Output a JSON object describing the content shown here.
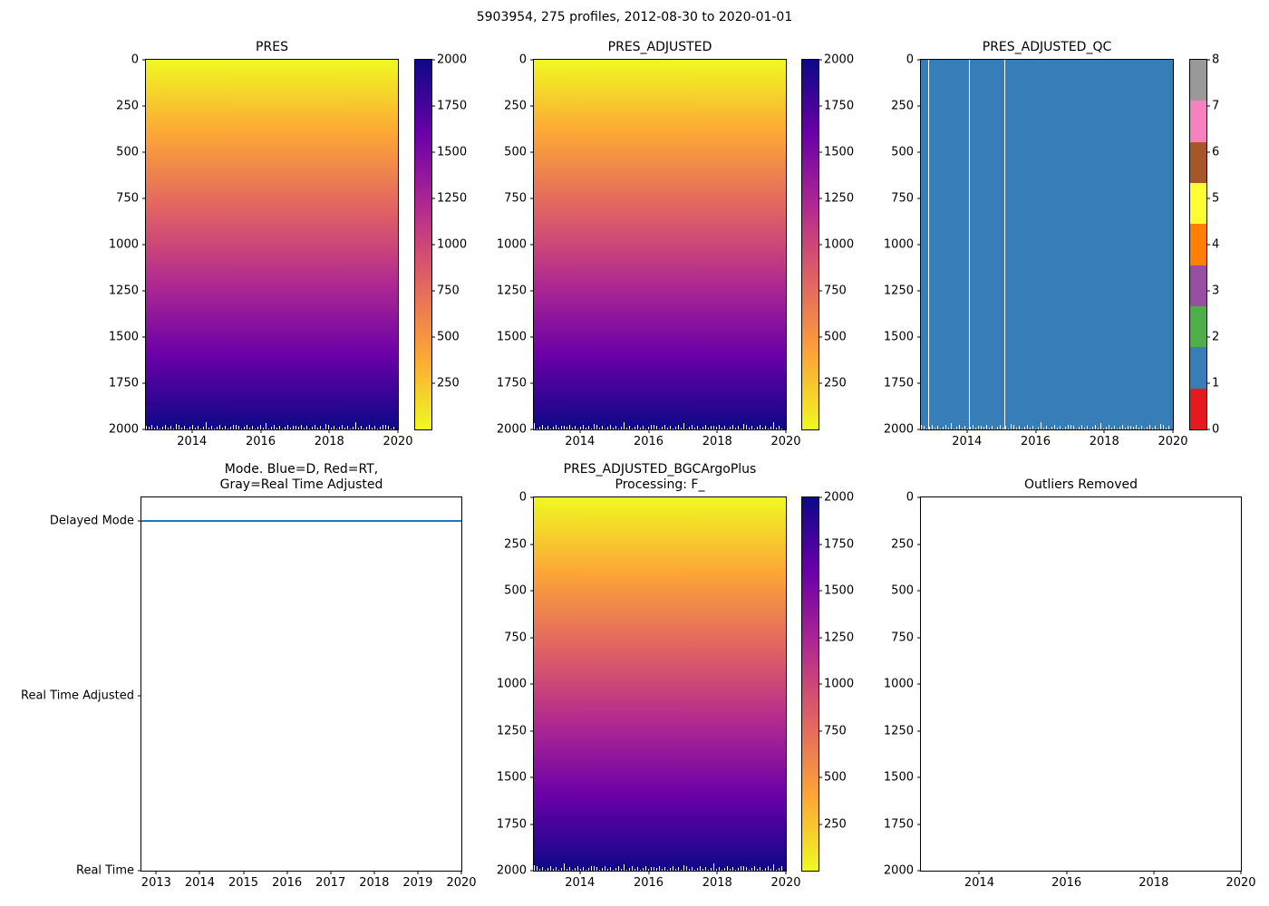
{
  "figure": {
    "title": "5903954, 275 profiles, 2012-08-30 to 2020-01-01",
    "float_id": "5903954",
    "n_profiles": 275,
    "date_range": "2012-08-30 to 2020-01-01",
    "background_color": "#ffffff",
    "axis_color": "#000000"
  },
  "colors": {
    "plasma_top_to_bottom": [
      "#f0f921",
      "#fca636",
      "#e16462",
      "#cc4778",
      "#b12a90",
      "#6a00a8",
      "#0d0887"
    ],
    "qc_flag_fill": "#377eb8",
    "mode_line": "#1f77b4",
    "set1_flag_palette": [
      "#e41a1c",
      "#377eb8",
      "#4daf4a",
      "#984ea3",
      "#ff7f00",
      "#ffff33",
      "#a65628",
      "#f781bf",
      "#999999"
    ]
  },
  "chart_data": [
    {
      "id": "pres",
      "type": "heatmap",
      "title_lines": [
        "PRES"
      ],
      "x": {
        "min": 2012.66,
        "max": 2020.0,
        "ticks": [
          2014,
          2016,
          2018,
          2020
        ]
      },
      "y": {
        "min": 0,
        "max": 2000,
        "inverted": true,
        "ticks": [
          0,
          250,
          500,
          750,
          1000,
          1250,
          1500,
          1750,
          2000
        ]
      },
      "value_field": "PRES (dbar)",
      "value_model": {
        "surface_value": 0,
        "bottom_value": 2000,
        "note": "pressure increases smoothly with depth for every profile across 2012-2020; yellow at surface, dark navy at 2000"
      },
      "colormap": "plasma_r",
      "colorbar": {
        "min": 0,
        "max": 2000,
        "ticks": [
          2000,
          1750,
          1500,
          1250,
          1000,
          750,
          500,
          250
        ]
      }
    },
    {
      "id": "pres_adjusted",
      "type": "heatmap",
      "title_lines": [
        "PRES_ADJUSTED"
      ],
      "x": {
        "min": 2012.66,
        "max": 2020.0,
        "ticks": [
          2014,
          2016,
          2018,
          2020
        ]
      },
      "y": {
        "min": 0,
        "max": 2000,
        "inverted": true,
        "ticks": [
          0,
          250,
          500,
          750,
          1000,
          1250,
          1500,
          1750,
          2000
        ]
      },
      "value_field": "PRES_ADJUSTED (dbar)",
      "value_model": {
        "surface_value": 0,
        "bottom_value": 2000,
        "note": "same smooth 0-2000 depth gradient for all profiles"
      },
      "colormap": "plasma_r",
      "colorbar": {
        "min": 0,
        "max": 2000,
        "ticks": [
          2000,
          1750,
          1500,
          1250,
          1000,
          750,
          500,
          250
        ]
      }
    },
    {
      "id": "pres_adjusted_qc",
      "type": "qc",
      "title_lines": [
        "PRES_ADJUSTED_QC"
      ],
      "x": {
        "min": 2012.66,
        "max": 2020.0,
        "ticks": [
          2014,
          2016,
          2018,
          2020
        ]
      },
      "y": {
        "min": 0,
        "max": 2000,
        "inverted": true,
        "ticks": [
          0,
          250,
          500,
          750,
          1000,
          1250,
          1500,
          1750,
          2000
        ]
      },
      "value_field": "QC flag",
      "dominant_flag": 1,
      "dominant_flag_color": "#377eb8",
      "missing_profile_times": [
        2012.88,
        2014.05,
        2015.1
      ],
      "colorbar": {
        "type": "discrete",
        "min": 0,
        "max": 8,
        "ticks": [
          8,
          7,
          6,
          5,
          4,
          3,
          2,
          1,
          0
        ],
        "colors_bottom_to_top": [
          "#e41a1c",
          "#377eb8",
          "#4daf4a",
          "#984ea3",
          "#ff7f00",
          "#ffff33",
          "#a65628",
          "#f781bf",
          "#999999"
        ]
      }
    },
    {
      "id": "mode",
      "type": "mode",
      "title_lines": [
        "Mode. Blue=D, Red=RT,",
        "Gray=Real Time Adjusted"
      ],
      "x": {
        "min": 2012.66,
        "max": 2020.0,
        "ticks": [
          2013,
          2014,
          2015,
          2016,
          2017,
          2018,
          2019,
          2020
        ]
      },
      "y": {
        "min": 0,
        "max": 2.135,
        "categories": [
          {
            "label": "Delayed Mode",
            "value": 2
          },
          {
            "label": "Real Time Adjusted",
            "value": 1
          },
          {
            "label": "Real Time",
            "value": 0
          }
        ]
      },
      "series": [
        {
          "name": "mode",
          "color": "#1f77b4",
          "y_value": 2,
          "x_start": 2012.66,
          "x_end": 2020.0,
          "meaning": "all profiles are Delayed Mode for the entire record"
        }
      ]
    },
    {
      "id": "bgc_processing",
      "type": "heatmap",
      "title_lines": [
        "PRES_ADJUSTED_BGCArgoPlus",
        "Processing: F_"
      ],
      "x": {
        "min": 2012.66,
        "max": 2020.0,
        "ticks": [
          2014,
          2016,
          2018,
          2020
        ]
      },
      "y": {
        "min": 0,
        "max": 2000,
        "inverted": true,
        "ticks": [
          0,
          250,
          500,
          750,
          1000,
          1250,
          1500,
          1750,
          2000
        ]
      },
      "value_field": "PRES_ADJUSTED_BGCArgoPlus (dbar)",
      "value_model": {
        "surface_value": 0,
        "bottom_value": 2000,
        "note": "same smooth 0-2000 depth gradient for all profiles"
      },
      "colormap": "plasma_r",
      "colorbar": {
        "min": 0,
        "max": 2000,
        "ticks": [
          2000,
          1750,
          1500,
          1250,
          1000,
          750,
          500,
          250
        ]
      }
    },
    {
      "id": "outliers_removed",
      "type": "empty",
      "title_lines": [
        "Outliers Removed"
      ],
      "x": {
        "min": 2012.66,
        "max": 2020.0,
        "ticks": [
          2014,
          2016,
          2018,
          2020
        ]
      },
      "y": {
        "min": 0,
        "max": 2000,
        "inverted": true,
        "ticks": [
          0,
          250,
          500,
          750,
          1000,
          1250,
          1500,
          1750,
          2000
        ]
      },
      "value_model": {
        "note": "no outliers plotted - axes empty"
      }
    }
  ]
}
